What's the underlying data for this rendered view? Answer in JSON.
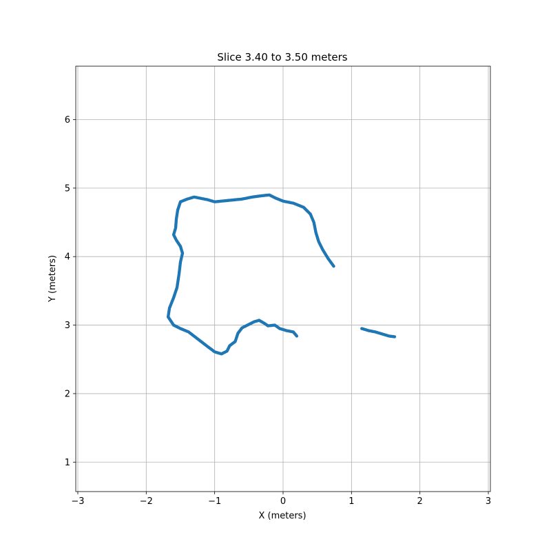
{
  "chart_data": {
    "type": "scatter",
    "title": "Slice 3.40 to 3.50 meters",
    "xlabel": "X (meters)",
    "ylabel": "Y (meters)",
    "xlim": [
      -3.03,
      3.03
    ],
    "ylim": [
      0.57,
      6.78
    ],
    "xticks": [
      -3,
      -2,
      -1,
      0,
      1,
      2,
      3
    ],
    "yticks": [
      1,
      2,
      3,
      4,
      5,
      6
    ],
    "xtick_labels": [
      "−3",
      "−2",
      "−1",
      "0",
      "1",
      "2",
      "3"
    ],
    "ytick_labels": [
      "1",
      "2",
      "3",
      "4",
      "5",
      "6"
    ],
    "grid": true,
    "colors": {
      "series": "#1f77b4",
      "grid": "#b0b0b0",
      "axes": "#000000"
    },
    "series": [
      {
        "points": [
          [
            0.74,
            3.86
          ],
          [
            0.66,
            3.97
          ],
          [
            0.58,
            4.1
          ],
          [
            0.52,
            4.22
          ],
          [
            0.48,
            4.35
          ],
          [
            0.45,
            4.5
          ],
          [
            0.4,
            4.62
          ],
          [
            0.3,
            4.72
          ],
          [
            0.15,
            4.78
          ],
          [
            0.0,
            4.81
          ],
          [
            -0.1,
            4.85
          ],
          [
            -0.2,
            4.9
          ],
          [
            -0.3,
            4.89
          ],
          [
            -0.45,
            4.87
          ],
          [
            -0.6,
            4.84
          ],
          [
            -0.7,
            4.83
          ],
          [
            -0.8,
            4.82
          ],
          [
            -0.9,
            4.81
          ],
          [
            -1.0,
            4.8
          ],
          [
            -1.1,
            4.83
          ],
          [
            -1.2,
            4.85
          ],
          [
            -1.3,
            4.87
          ],
          [
            -1.4,
            4.84
          ],
          [
            -1.5,
            4.8
          ],
          [
            -1.54,
            4.68
          ],
          [
            -1.56,
            4.55
          ],
          [
            -1.57,
            4.42
          ],
          [
            -1.6,
            4.32
          ],
          [
            -1.56,
            4.24
          ],
          [
            -1.5,
            4.15
          ],
          [
            -1.47,
            4.05
          ],
          [
            -1.5,
            3.92
          ],
          [
            -1.52,
            3.75
          ],
          [
            -1.55,
            3.55
          ],
          [
            -1.6,
            3.4
          ],
          [
            -1.66,
            3.25
          ],
          [
            -1.68,
            3.12
          ],
          [
            -1.6,
            3.0
          ],
          [
            -1.5,
            2.95
          ],
          [
            -1.38,
            2.9
          ],
          [
            -1.25,
            2.8
          ],
          [
            -1.12,
            2.7
          ],
          [
            -1.0,
            2.61
          ],
          [
            -0.9,
            2.58
          ],
          [
            -0.82,
            2.62
          ],
          [
            -0.78,
            2.7
          ],
          [
            -0.7,
            2.76
          ],
          [
            -0.66,
            2.88
          ],
          [
            -0.6,
            2.96
          ],
          [
            -0.52,
            3.0
          ],
          [
            -0.42,
            3.05
          ],
          [
            -0.35,
            3.07
          ],
          [
            -0.28,
            3.03
          ],
          [
            -0.22,
            2.99
          ],
          [
            -0.12,
            3.0
          ],
          [
            -0.05,
            2.95
          ],
          [
            0.05,
            2.92
          ],
          [
            0.15,
            2.9
          ],
          [
            0.2,
            2.84
          ]
        ]
      },
      {
        "points": [
          [
            1.15,
            2.95
          ],
          [
            1.25,
            2.92
          ],
          [
            1.35,
            2.9
          ],
          [
            1.45,
            2.87
          ],
          [
            1.55,
            2.84
          ],
          [
            1.63,
            2.83
          ]
        ]
      }
    ]
  }
}
